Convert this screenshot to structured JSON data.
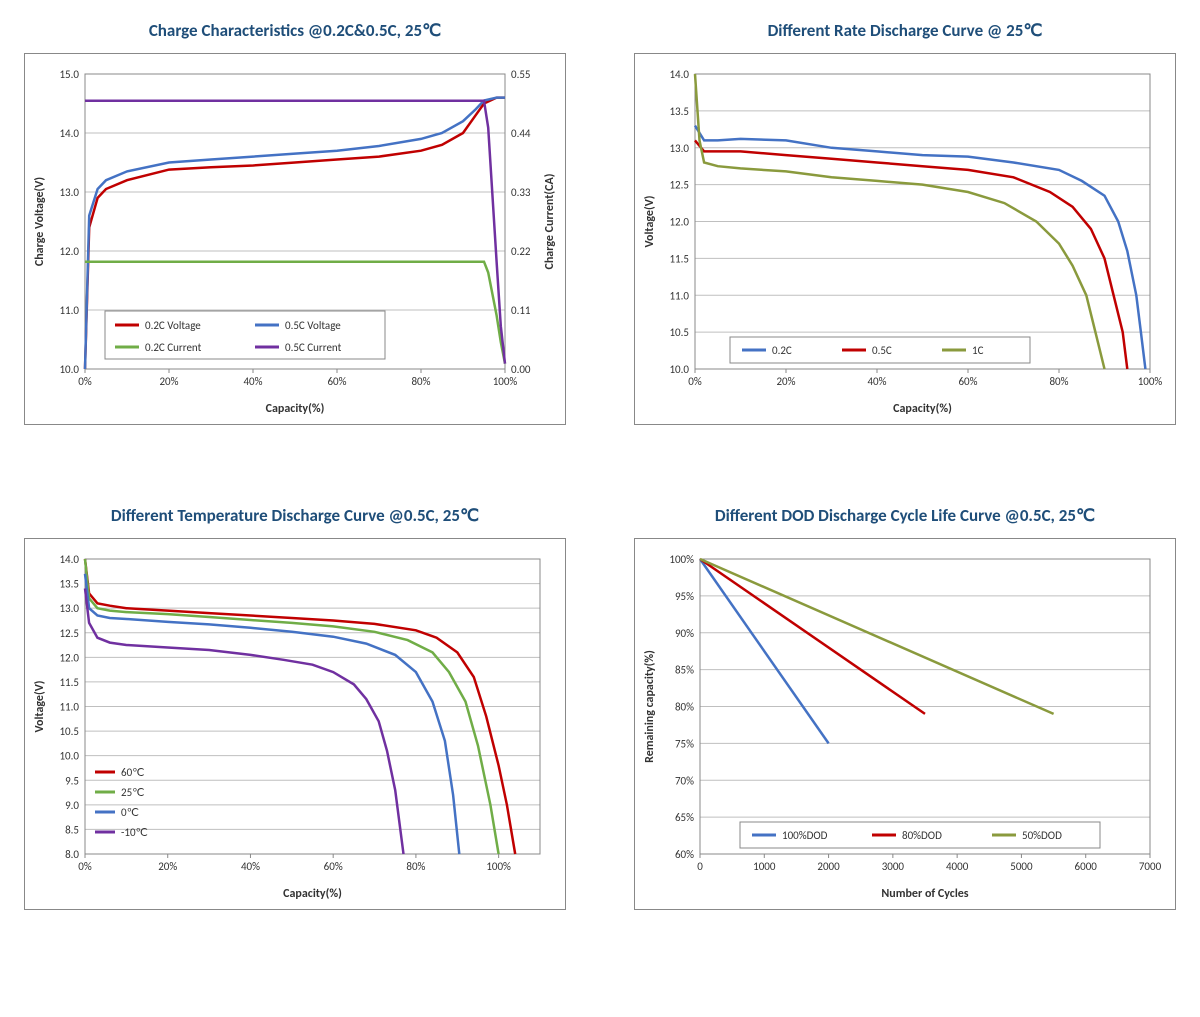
{
  "colors": {
    "title": "#1f4e79",
    "axis_text": "#333333",
    "grid": "#bfbfbf",
    "border": "#888888",
    "red": "#c00000",
    "blue": "#4472c4",
    "green": "#70ad47",
    "olive": "#8a9a3d",
    "purple": "#7030a0",
    "bg": "#ffffff"
  },
  "chart1": {
    "title": "Charge Characteristics @0.2C&0.5C, 25℃",
    "xlabel": "Capacity(%)",
    "ylabel_left": "Charge Voltage(V)",
    "ylabel_right": "Charge Current(CA)",
    "x": {
      "min": 0,
      "max": 100,
      "ticks": [
        0,
        20,
        40,
        60,
        80,
        100
      ],
      "tick_labels": [
        "0%",
        "20%",
        "40%",
        "60%",
        "80%",
        "100%"
      ]
    },
    "y_left": {
      "min": 10.0,
      "max": 15.0,
      "ticks": [
        10.0,
        11.0,
        12.0,
        13.0,
        14.0,
        15.0
      ]
    },
    "y_right": {
      "min": 0.0,
      "max": 0.55,
      "ticks": [
        0.0,
        0.11,
        0.22,
        0.33,
        0.44,
        0.55
      ]
    },
    "series": [
      {
        "name": "0.2C Voltage",
        "axis": "left",
        "color": "#c00000",
        "data": [
          [
            0,
            10.0
          ],
          [
            1,
            12.4
          ],
          [
            3,
            12.9
          ],
          [
            5,
            13.05
          ],
          [
            10,
            13.2
          ],
          [
            20,
            13.38
          ],
          [
            30,
            13.42
          ],
          [
            40,
            13.45
          ],
          [
            50,
            13.5
          ],
          [
            60,
            13.55
          ],
          [
            70,
            13.6
          ],
          [
            80,
            13.7
          ],
          [
            85,
            13.8
          ],
          [
            90,
            14.0
          ],
          [
            93,
            14.3
          ],
          [
            95,
            14.5
          ],
          [
            98,
            14.6
          ],
          [
            100,
            14.6
          ]
        ]
      },
      {
        "name": "0.5C Voltage",
        "axis": "left",
        "color": "#4472c4",
        "data": [
          [
            0,
            10.0
          ],
          [
            1,
            12.6
          ],
          [
            3,
            13.05
          ],
          [
            5,
            13.2
          ],
          [
            10,
            13.35
          ],
          [
            20,
            13.5
          ],
          [
            30,
            13.55
          ],
          [
            40,
            13.6
          ],
          [
            50,
            13.65
          ],
          [
            60,
            13.7
          ],
          [
            70,
            13.78
          ],
          [
            80,
            13.9
          ],
          [
            85,
            14.0
          ],
          [
            90,
            14.2
          ],
          [
            93,
            14.4
          ],
          [
            95,
            14.55
          ],
          [
            98,
            14.6
          ],
          [
            100,
            14.6
          ]
        ]
      },
      {
        "name": "0.2C Current",
        "axis": "right",
        "color": "#70ad47",
        "data": [
          [
            0,
            0.2
          ],
          [
            95,
            0.2
          ],
          [
            96,
            0.18
          ],
          [
            98,
            0.1
          ],
          [
            99,
            0.05
          ],
          [
            100,
            0.01
          ]
        ]
      },
      {
        "name": "0.5C Current",
        "axis": "right",
        "color": "#7030a0",
        "data": [
          [
            0,
            0.5
          ],
          [
            95,
            0.5
          ],
          [
            96,
            0.45
          ],
          [
            98,
            0.2
          ],
          [
            99,
            0.08
          ],
          [
            100,
            0.01
          ]
        ]
      }
    ],
    "legend": [
      {
        "label": "0.2C Voltage",
        "color": "#c00000"
      },
      {
        "label": "0.5C Voltage",
        "color": "#4472c4"
      },
      {
        "label": "0.2C Current",
        "color": "#70ad47"
      },
      {
        "label": "0.5C Current",
        "color": "#7030a0"
      }
    ]
  },
  "chart2": {
    "title": "Different Rate Discharge Curve @ 25℃",
    "xlabel": "Capacity(%)",
    "ylabel": "Voltage(V)",
    "x": {
      "min": 0,
      "max": 100,
      "ticks": [
        0,
        20,
        40,
        60,
        80,
        100
      ],
      "tick_labels": [
        "0%",
        "20%",
        "40%",
        "60%",
        "80%",
        "100%"
      ]
    },
    "y": {
      "min": 10.0,
      "max": 14.0,
      "ticks": [
        10.0,
        10.5,
        11.0,
        11.5,
        12.0,
        12.5,
        13.0,
        13.5,
        14.0
      ]
    },
    "series": [
      {
        "name": "0.2C",
        "color": "#4472c4",
        "data": [
          [
            0,
            13.3
          ],
          [
            2,
            13.1
          ],
          [
            5,
            13.1
          ],
          [
            10,
            13.12
          ],
          [
            20,
            13.1
          ],
          [
            30,
            13.0
          ],
          [
            40,
            12.95
          ],
          [
            50,
            12.9
          ],
          [
            60,
            12.88
          ],
          [
            70,
            12.8
          ],
          [
            80,
            12.7
          ],
          [
            85,
            12.55
          ],
          [
            90,
            12.35
          ],
          [
            93,
            12.0
          ],
          [
            95,
            11.6
          ],
          [
            97,
            11.0
          ],
          [
            98,
            10.5
          ],
          [
            99,
            10.0
          ]
        ]
      },
      {
        "name": "0.5C",
        "color": "#c00000",
        "data": [
          [
            0,
            13.1
          ],
          [
            2,
            12.95
          ],
          [
            5,
            12.95
          ],
          [
            10,
            12.95
          ],
          [
            20,
            12.9
          ],
          [
            30,
            12.85
          ],
          [
            40,
            12.8
          ],
          [
            50,
            12.75
          ],
          [
            60,
            12.7
          ],
          [
            70,
            12.6
          ],
          [
            78,
            12.4
          ],
          [
            83,
            12.2
          ],
          [
            87,
            11.9
          ],
          [
            90,
            11.5
          ],
          [
            92,
            11.0
          ],
          [
            94,
            10.5
          ],
          [
            95,
            10.0
          ]
        ]
      },
      {
        "name": "1C",
        "color": "#8a9a3d",
        "data": [
          [
            0,
            14.0
          ],
          [
            1,
            13.1
          ],
          [
            2,
            12.8
          ],
          [
            5,
            12.75
          ],
          [
            10,
            12.72
          ],
          [
            20,
            12.68
          ],
          [
            30,
            12.6
          ],
          [
            40,
            12.55
          ],
          [
            50,
            12.5
          ],
          [
            60,
            12.4
          ],
          [
            68,
            12.25
          ],
          [
            75,
            12.0
          ],
          [
            80,
            11.7
          ],
          [
            83,
            11.4
          ],
          [
            86,
            11.0
          ],
          [
            88,
            10.5
          ],
          [
            90,
            10.0
          ]
        ]
      }
    ],
    "legend": [
      {
        "label": "0.2C",
        "color": "#4472c4"
      },
      {
        "label": "0.5C",
        "color": "#c00000"
      },
      {
        "label": "1C",
        "color": "#8a9a3d"
      }
    ]
  },
  "chart3": {
    "title": "Different Temperature Discharge Curve @0.5C, 25℃",
    "xlabel": "Capacity(%)",
    "ylabel": "Voltage(V)",
    "x": {
      "min": 0,
      "max": 110,
      "ticks": [
        0,
        20,
        40,
        60,
        80,
        100
      ],
      "tick_labels": [
        "0%",
        "20%",
        "40%",
        "60%",
        "80%",
        "100%"
      ]
    },
    "y": {
      "min": 8.0,
      "max": 14.0,
      "ticks": [
        8.0,
        8.5,
        9.0,
        9.5,
        10.0,
        10.5,
        11.0,
        11.5,
        12.0,
        12.5,
        13.0,
        13.5,
        14.0
      ]
    },
    "series": [
      {
        "name": "60℃",
        "color": "#c00000",
        "data": [
          [
            0,
            14.0
          ],
          [
            1,
            13.3
          ],
          [
            3,
            13.1
          ],
          [
            6,
            13.05
          ],
          [
            10,
            13.0
          ],
          [
            20,
            12.95
          ],
          [
            30,
            12.9
          ],
          [
            40,
            12.85
          ],
          [
            50,
            12.8
          ],
          [
            60,
            12.75
          ],
          [
            70,
            12.68
          ],
          [
            80,
            12.55
          ],
          [
            85,
            12.4
          ],
          [
            90,
            12.1
          ],
          [
            94,
            11.6
          ],
          [
            97,
            10.8
          ],
          [
            100,
            9.8
          ],
          [
            102,
            9.0
          ],
          [
            104,
            8.0
          ]
        ]
      },
      {
        "name": "25℃",
        "color": "#70ad47",
        "data": [
          [
            0,
            14.0
          ],
          [
            1,
            13.2
          ],
          [
            3,
            13.0
          ],
          [
            6,
            12.95
          ],
          [
            10,
            12.92
          ],
          [
            20,
            12.88
          ],
          [
            30,
            12.82
          ],
          [
            40,
            12.76
          ],
          [
            50,
            12.7
          ],
          [
            60,
            12.63
          ],
          [
            70,
            12.52
          ],
          [
            78,
            12.35
          ],
          [
            84,
            12.1
          ],
          [
            88,
            11.7
          ],
          [
            92,
            11.1
          ],
          [
            95,
            10.2
          ],
          [
            98,
            9.0
          ],
          [
            100,
            8.0
          ]
        ]
      },
      {
        "name": "0℃",
        "color": "#4472c4",
        "data": [
          [
            0,
            13.7
          ],
          [
            1,
            13.0
          ],
          [
            3,
            12.85
          ],
          [
            6,
            12.8
          ],
          [
            10,
            12.78
          ],
          [
            20,
            12.72
          ],
          [
            30,
            12.67
          ],
          [
            40,
            12.6
          ],
          [
            50,
            12.52
          ],
          [
            60,
            12.42
          ],
          [
            68,
            12.28
          ],
          [
            75,
            12.05
          ],
          [
            80,
            11.7
          ],
          [
            84,
            11.1
          ],
          [
            87,
            10.3
          ],
          [
            89,
            9.2
          ],
          [
            90.5,
            8.0
          ]
        ]
      },
      {
        "name": "-10℃",
        "color": "#7030a0",
        "data": [
          [
            0,
            13.4
          ],
          [
            1,
            12.7
          ],
          [
            3,
            12.4
          ],
          [
            6,
            12.3
          ],
          [
            10,
            12.25
          ],
          [
            20,
            12.2
          ],
          [
            30,
            12.15
          ],
          [
            40,
            12.05
          ],
          [
            48,
            11.95
          ],
          [
            55,
            11.85
          ],
          [
            60,
            11.7
          ],
          [
            65,
            11.45
          ],
          [
            68,
            11.15
          ],
          [
            71,
            10.7
          ],
          [
            73,
            10.1
          ],
          [
            75,
            9.3
          ],
          [
            77,
            8.0
          ]
        ]
      }
    ],
    "legend": [
      {
        "label": "60℃",
        "color": "#c00000"
      },
      {
        "label": "25℃",
        "color": "#70ad47"
      },
      {
        "label": "0℃",
        "color": "#4472c4"
      },
      {
        "label": "-10℃",
        "color": "#7030a0"
      }
    ]
  },
  "chart4": {
    "title": "Different DOD Discharge Cycle Life Curve @0.5C, 25℃",
    "xlabel": "Number of Cycles",
    "ylabel": "Remaining capacity(%)",
    "x": {
      "min": 0,
      "max": 7000,
      "ticks": [
        0,
        1000,
        2000,
        3000,
        4000,
        5000,
        6000,
        7000
      ]
    },
    "y": {
      "min": 60,
      "max": 100,
      "ticks": [
        60,
        65,
        70,
        75,
        80,
        85,
        90,
        95,
        100
      ],
      "tick_labels": [
        "60%",
        "65%",
        "70%",
        "75%",
        "80%",
        "85%",
        "90%",
        "95%",
        "100%"
      ]
    },
    "series": [
      {
        "name": "100%DOD",
        "color": "#4472c4",
        "data": [
          [
            0,
            100
          ],
          [
            2000,
            75
          ]
        ]
      },
      {
        "name": "80%DOD",
        "color": "#c00000",
        "data": [
          [
            0,
            100
          ],
          [
            3500,
            79
          ]
        ]
      },
      {
        "name": "50%DOD",
        "color": "#8a9a3d",
        "data": [
          [
            0,
            100
          ],
          [
            5500,
            79
          ]
        ]
      }
    ],
    "legend": [
      {
        "label": "100%DOD",
        "color": "#4472c4"
      },
      {
        "label": "80%DOD",
        "color": "#c00000"
      },
      {
        "label": "50%DOD",
        "color": "#8a9a3d"
      }
    ]
  }
}
